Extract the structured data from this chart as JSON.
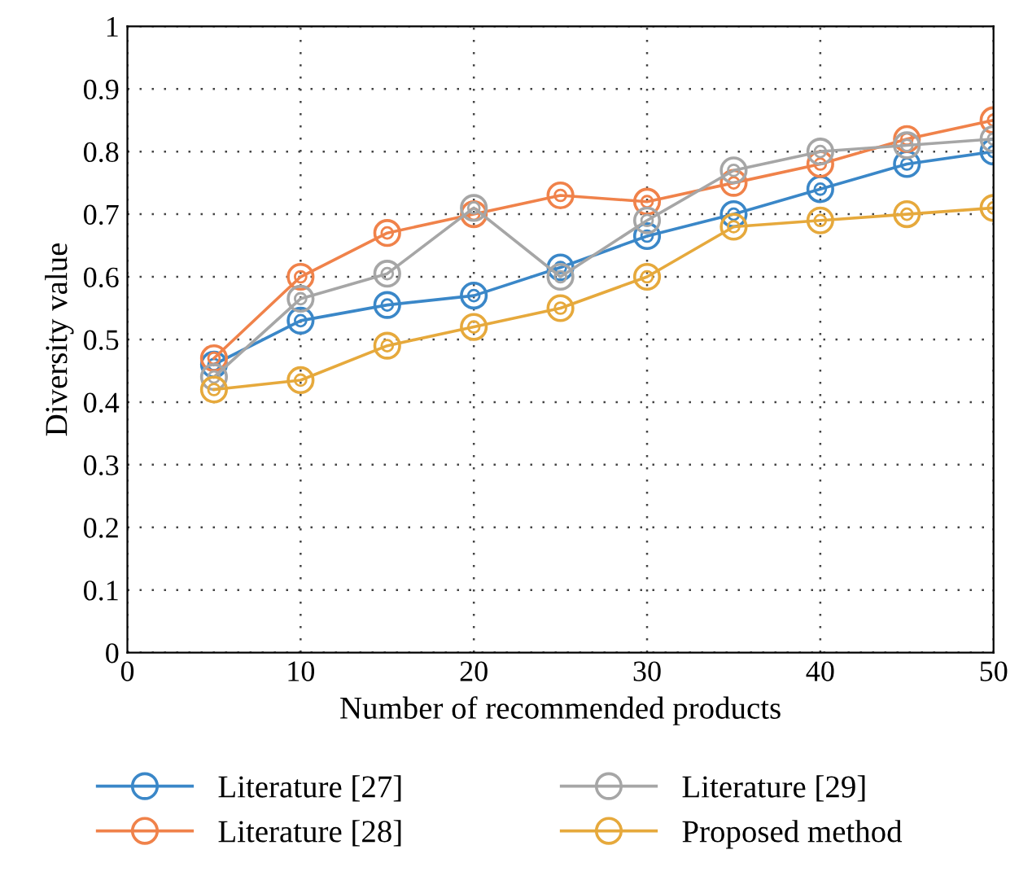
{
  "chart_data": {
    "type": "line",
    "xlabel": "Number of recommended products",
    "ylabel": "Diversity value",
    "x": [
      5,
      10,
      15,
      20,
      25,
      30,
      35,
      40,
      45,
      50
    ],
    "series": [
      {
        "name": "Literature [27]",
        "color": "#3a87c8",
        "values": [
          0.46,
          0.53,
          0.555,
          0.57,
          0.615,
          0.665,
          0.7,
          0.74,
          0.78,
          0.8
        ]
      },
      {
        "name": "Literature [28]",
        "color": "#f0824a",
        "values": [
          0.47,
          0.6,
          0.67,
          0.7,
          0.73,
          0.72,
          0.75,
          0.78,
          0.82,
          0.85
        ]
      },
      {
        "name": "Literature [29]",
        "color": "#a6a6a6",
        "values": [
          0.44,
          0.565,
          0.605,
          0.71,
          0.6,
          0.69,
          0.77,
          0.8,
          0.81,
          0.82
        ]
      },
      {
        "name": "Proposed method",
        "color": "#e6a93c",
        "values": [
          0.42,
          0.435,
          0.49,
          0.52,
          0.55,
          0.6,
          0.68,
          0.69,
          0.7,
          0.71
        ]
      }
    ],
    "xlim": [
      0,
      50
    ],
    "xticks": [
      0,
      10,
      20,
      30,
      40,
      50
    ],
    "ylim": [
      0,
      1
    ],
    "yticks": [
      0,
      0.1,
      0.2,
      0.3,
      0.4,
      0.5,
      0.6,
      0.7,
      0.8,
      0.9,
      1
    ],
    "grid": true,
    "legend": "bottom",
    "marker": "circle",
    "line_style": "solid"
  }
}
